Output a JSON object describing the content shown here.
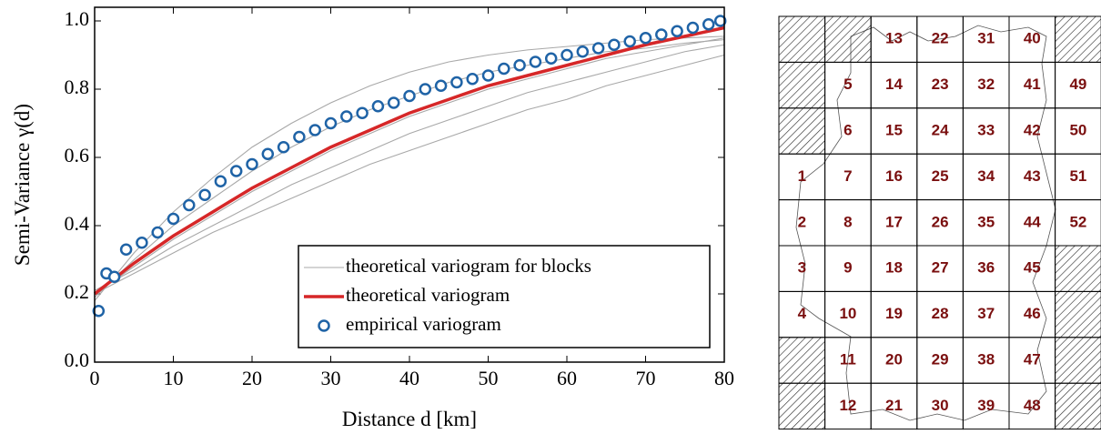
{
  "chart_data": {
    "type": "line",
    "xlabel": "Distance d [km]",
    "ylabel": "Semi-Variance γ(d)",
    "xlim": [
      0,
      80
    ],
    "ylim": [
      0,
      1.04
    ],
    "xticks": [
      0,
      10,
      20,
      30,
      40,
      50,
      60,
      70,
      80
    ],
    "yticks": [
      {
        "value": 0,
        "label": "0.0"
      },
      0.2,
      0.4,
      0.6,
      0.8,
      {
        "value": 1,
        "label": "1.0"
      }
    ],
    "legend": "lower right",
    "series": [
      {
        "name": "theoretical variogram for blocks",
        "type": "line",
        "color": "#a8a8a8",
        "x": [
          0,
          5,
          10,
          15,
          20,
          25,
          30,
          35,
          40,
          45,
          50,
          55,
          60,
          65,
          70,
          75,
          80
        ],
        "curves": [
          [
            0.18,
            0.32,
            0.44,
            0.54,
            0.63,
            0.7,
            0.76,
            0.81,
            0.85,
            0.88,
            0.9,
            0.915,
            0.925,
            0.935,
            0.945,
            0.95,
            0.955
          ],
          [
            0.19,
            0.3,
            0.4,
            0.48,
            0.56,
            0.63,
            0.69,
            0.74,
            0.78,
            0.82,
            0.85,
            0.87,
            0.89,
            0.91,
            0.92,
            0.935,
            0.945
          ],
          [
            0.2,
            0.28,
            0.36,
            0.43,
            0.5,
            0.56,
            0.62,
            0.67,
            0.72,
            0.76,
            0.8,
            0.83,
            0.86,
            0.89,
            0.91,
            0.93,
            0.95
          ],
          [
            0.21,
            0.27,
            0.34,
            0.4,
            0.46,
            0.52,
            0.57,
            0.62,
            0.67,
            0.71,
            0.75,
            0.79,
            0.82,
            0.85,
            0.88,
            0.91,
            0.93
          ],
          [
            0.2,
            0.26,
            0.32,
            0.38,
            0.43,
            0.48,
            0.53,
            0.58,
            0.62,
            0.66,
            0.7,
            0.74,
            0.77,
            0.81,
            0.84,
            0.87,
            0.9
          ]
        ]
      },
      {
        "name": "theoretical variogram",
        "type": "line",
        "color": "#d62728",
        "x": [
          0,
          5,
          10,
          15,
          20,
          25,
          30,
          35,
          40,
          45,
          50,
          55,
          60,
          65,
          70,
          75,
          80
        ],
        "values": [
          0.2,
          0.29,
          0.37,
          0.44,
          0.51,
          0.57,
          0.63,
          0.68,
          0.73,
          0.77,
          0.81,
          0.84,
          0.87,
          0.9,
          0.93,
          0.955,
          0.98
        ]
      },
      {
        "name": "empirical variogram",
        "type": "scatter",
        "color": "#1f63a6",
        "x": [
          0.5,
          1.5,
          2.5,
          4,
          6,
          8,
          10,
          12,
          14,
          16,
          18,
          20,
          22,
          24,
          26,
          28,
          30,
          32,
          34,
          36,
          38,
          40,
          42,
          44,
          46,
          48,
          50,
          52,
          54,
          56,
          58,
          60,
          62,
          64,
          66,
          68,
          70,
          72,
          74,
          76,
          78,
          79.5
        ],
        "values": [
          0.15,
          0.26,
          0.25,
          0.33,
          0.35,
          0.38,
          0.42,
          0.46,
          0.49,
          0.53,
          0.56,
          0.58,
          0.61,
          0.63,
          0.66,
          0.68,
          0.7,
          0.72,
          0.73,
          0.75,
          0.76,
          0.78,
          0.8,
          0.81,
          0.82,
          0.83,
          0.84,
          0.86,
          0.87,
          0.88,
          0.89,
          0.9,
          0.91,
          0.92,
          0.93,
          0.94,
          0.95,
          0.96,
          0.97,
          0.98,
          0.99,
          1.0
        ]
      }
    ]
  },
  "block_map": {
    "rows": [
      [
        null,
        null,
        "13",
        "22",
        "31",
        "40",
        null
      ],
      [
        null,
        "5",
        "14",
        "23",
        "32",
        "41",
        "49"
      ],
      [
        null,
        "6",
        "15",
        "24",
        "33",
        "42",
        "50"
      ],
      [
        "1",
        "7",
        "16",
        "25",
        "34",
        "43",
        "51"
      ],
      [
        "2",
        "8",
        "17",
        "26",
        "35",
        "44",
        "52"
      ],
      [
        "3",
        "9",
        "18",
        "27",
        "36",
        "45",
        null
      ],
      [
        "4",
        "10",
        "19",
        "28",
        "37",
        "46",
        null
      ],
      [
        null,
        "11",
        "20",
        "29",
        "38",
        "47",
        null
      ],
      [
        null,
        "12",
        "21",
        "30",
        "39",
        "48",
        null
      ]
    ]
  }
}
